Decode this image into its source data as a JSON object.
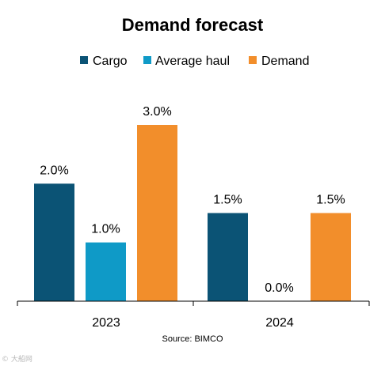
{
  "chart_data": {
    "type": "bar",
    "title": "Demand forecast",
    "categories": [
      "2023",
      "2024"
    ],
    "series": [
      {
        "name": "Cargo",
        "color": "#0b5375",
        "values": [
          2.0,
          1.5
        ],
        "labels": [
          "2.0%",
          "1.5%"
        ]
      },
      {
        "name": "Average haul",
        "color": "#0f9ac7",
        "values": [
          1.0,
          0.0
        ],
        "labels": [
          "1.0%",
          "0.0%"
        ]
      },
      {
        "name": "Demand",
        "color": "#f28e2b",
        "values": [
          3.0,
          1.5
        ],
        "labels": [
          "3.0%",
          "1.5%"
        ]
      }
    ],
    "ylim": [
      0,
      3.0
    ],
    "grid": false,
    "legend_position": "top",
    "source": "Source: BIMCO"
  },
  "watermark": "© 大船网"
}
